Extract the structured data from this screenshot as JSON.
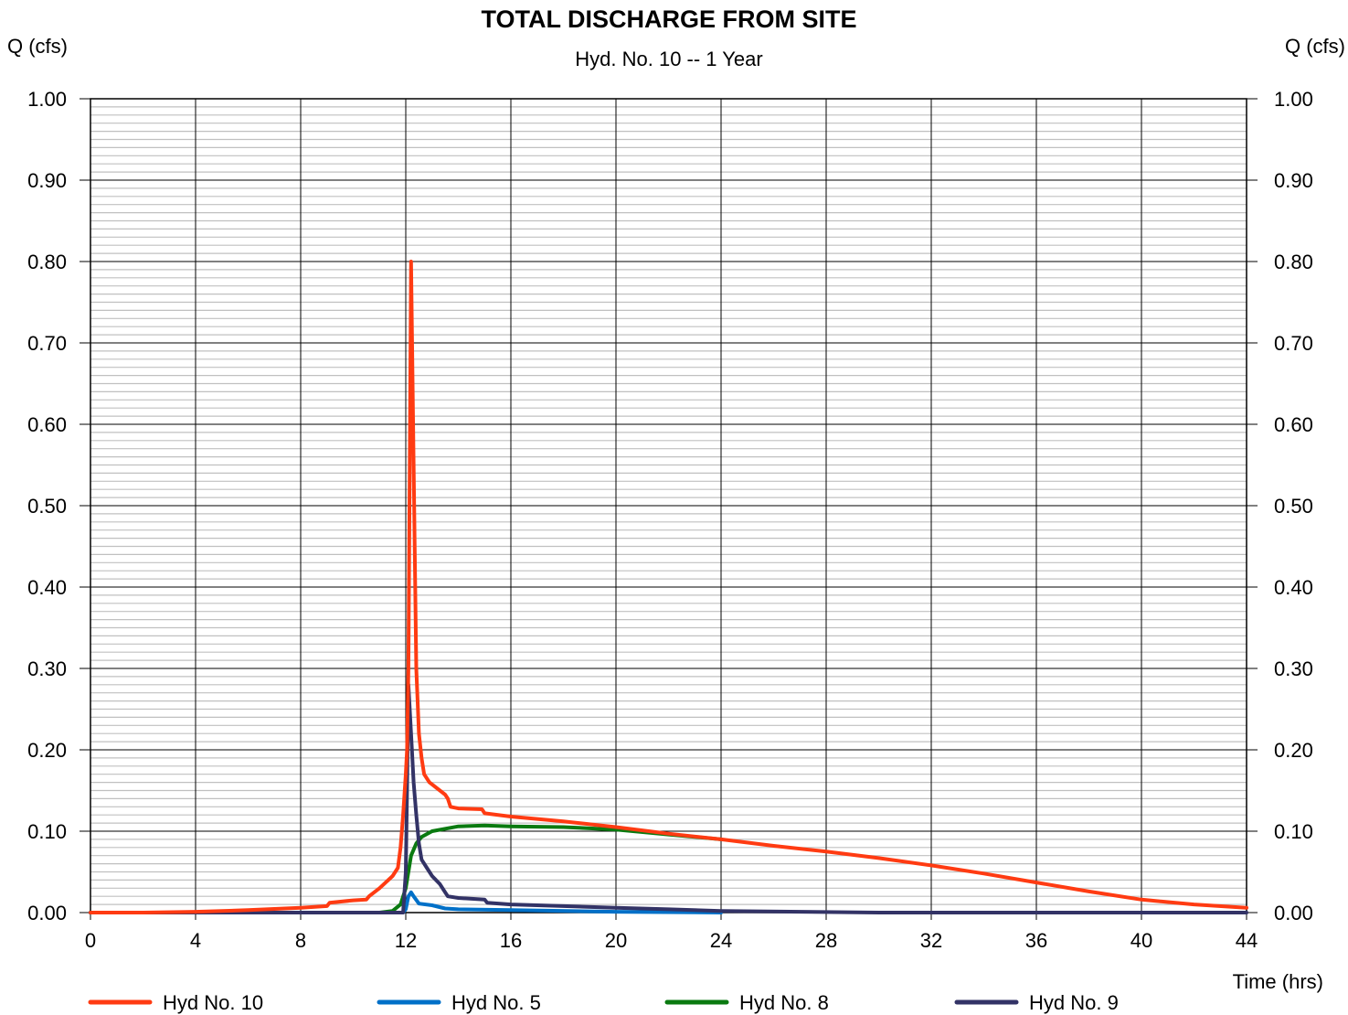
{
  "chart_data": {
    "type": "line",
    "title": "TOTAL DISCHARGE FROM SITE",
    "subtitle": "Hyd. No. 10 -- 1 Year",
    "ylabel_left": "Q (cfs)",
    "ylabel_right": "Q (cfs)",
    "xlabel": "Time (hrs)",
    "xlim": [
      0,
      44
    ],
    "ylim": [
      0,
      1.0
    ],
    "x_ticks": [
      "0",
      "4",
      "8",
      "12",
      "16",
      "20",
      "24",
      "28",
      "32",
      "36",
      "40",
      "44"
    ],
    "y_ticks": [
      "0.00",
      "0.10",
      "0.20",
      "0.30",
      "0.40",
      "0.50",
      "0.60",
      "0.70",
      "0.80",
      "0.90",
      "1.00"
    ],
    "grid": true,
    "legend_position": "bottom",
    "series": [
      {
        "name": "Hyd No. 10",
        "color": "#ff3b12",
        "x": [
          0,
          2,
          4,
          6,
          8,
          9,
          9.1,
          10,
          10.5,
          10.6,
          11,
          11.5,
          11.7,
          11.8,
          11.9,
          12.0,
          12.05,
          12.1,
          12.2,
          12.3,
          12.4,
          12.5,
          12.6,
          12.7,
          12.9,
          13.5,
          13.6,
          13.7,
          14,
          14.9,
          15.0,
          16,
          18,
          20,
          22,
          24,
          26,
          28,
          30,
          32,
          34,
          36,
          38,
          40,
          42,
          44
        ],
        "y": [
          0,
          0,
          0.001,
          0.003,
          0.006,
          0.008,
          0.012,
          0.015,
          0.016,
          0.02,
          0.03,
          0.045,
          0.055,
          0.08,
          0.12,
          0.17,
          0.2,
          0.3,
          0.8,
          0.55,
          0.3,
          0.22,
          0.19,
          0.17,
          0.16,
          0.145,
          0.14,
          0.13,
          0.128,
          0.127,
          0.122,
          0.118,
          0.112,
          0.105,
          0.097,
          0.09,
          0.082,
          0.075,
          0.067,
          0.058,
          0.048,
          0.037,
          0.026,
          0.016,
          0.01,
          0.006
        ]
      },
      {
        "name": "Hyd No. 5",
        "color": "#0070c8",
        "x": [
          0,
          11.9,
          12.0,
          12.1,
          12.2,
          12.3,
          12.5,
          13,
          13.5,
          14,
          16,
          20,
          24
        ],
        "y": [
          0,
          0,
          0.004,
          0.02,
          0.025,
          0.02,
          0.011,
          0.009,
          0.005,
          0.004,
          0.003,
          0.001,
          0.0
        ]
      },
      {
        "name": "Hyd No. 8",
        "color": "#0a7a10",
        "x": [
          0,
          11,
          11.5,
          11.8,
          12.0,
          12.2,
          12.4,
          12.6,
          13,
          14,
          15,
          16,
          18,
          20,
          22,
          24
        ],
        "y": [
          0,
          0.0,
          0.002,
          0.01,
          0.03,
          0.07,
          0.085,
          0.093,
          0.1,
          0.106,
          0.107,
          0.106,
          0.105,
          0.102,
          0.096,
          0.09
        ]
      },
      {
        "name": "Hyd No. 9",
        "color": "#333366",
        "x": [
          0,
          11.9,
          12.0,
          12.05,
          12.1,
          12.2,
          12.3,
          12.4,
          12.5,
          12.6,
          12.8,
          13.0,
          13.3,
          13.5,
          13.6,
          14.0,
          15.0,
          15.1,
          16,
          18,
          20,
          22,
          24,
          30,
          44
        ],
        "y": [
          0,
          0,
          0.05,
          0.15,
          0.28,
          0.22,
          0.16,
          0.12,
          0.085,
          0.065,
          0.055,
          0.045,
          0.035,
          0.025,
          0.02,
          0.018,
          0.016,
          0.012,
          0.01,
          0.008,
          0.006,
          0.004,
          0.002,
          0.0,
          0.0
        ]
      }
    ]
  }
}
